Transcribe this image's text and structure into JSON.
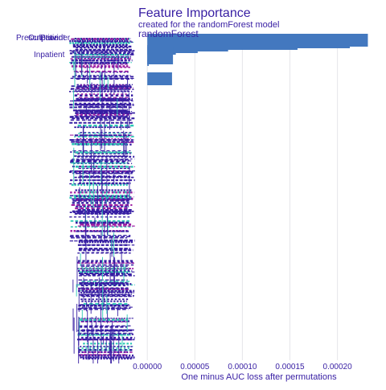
{
  "title": "Feature Importance",
  "subtitle": "created for the randomForest model",
  "colors": {
    "title": "#371ea3",
    "bar": "#4378bf",
    "grid": "#e6e6ea",
    "noise_a": "#371ea3",
    "noise_b": "#9e1ea3",
    "noise_c": "#2ec9b5"
  },
  "chart_data": {
    "type": "bar",
    "orientation": "horizontal",
    "title": "Feature Importance",
    "subtitle": "created for the randomForest model",
    "panel_label": "randomForest",
    "xlabel": "One minus AUC loss after permutations",
    "ylabel": "",
    "xlim": [
      -1e-06,
      0.000235
    ],
    "xticks": [
      0,
      5e-05,
      0.0001,
      0.00015,
      0.0002
    ],
    "xtick_labels": [
      "0.00000",
      "0.00005",
      "0.00010",
      "0.00015",
      "0.00020"
    ],
    "grid": true,
    "legend": "none",
    "visible_labels": [
      "Prescription",
      "Outpatient",
      "Provider",
      "Inpatient"
    ],
    "values": [
      0.000232,
      0.000213,
      0.000158,
      8.5e-05,
      5.3e-05,
      3e-05,
      1.8e-05,
      9e-06,
      4e-06,
      1.5e-06
    ]
  }
}
